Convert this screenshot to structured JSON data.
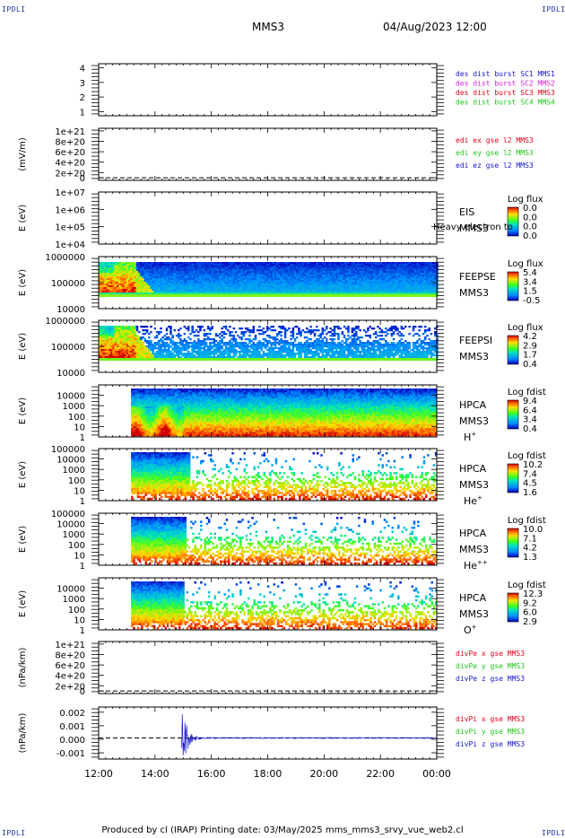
{
  "header": {
    "corner_tl": "IPDLI",
    "corner_tr": "IPDLI",
    "corner_bl": "IPDLI",
    "corner_br": "IPDLI",
    "spacecraft": "MMS3",
    "datetime": "04/Aug/2023 12:00"
  },
  "footer": {
    "text": "Produced by cl (IRAP)    Printing date: 03/May/2025    mms_mms3_srvy_vue_web2.cl"
  },
  "colors": {
    "red": "#e0001a",
    "green": "#22c41e",
    "blue": "#1515c8",
    "magenta": "#d41fd4"
  },
  "chart_data": {
    "type": "heatmap",
    "x_axis": {
      "ticks": [
        "12:00",
        "14:00",
        "16:00",
        "18:00",
        "20:00",
        "22:00",
        "00:00"
      ],
      "range_hours": [
        12,
        24
      ]
    },
    "panels": [
      {
        "id": "burst",
        "type": "line",
        "ylabel": "",
        "yticks": [
          "4",
          "3",
          "2",
          "1"
        ],
        "legend": [
          {
            "text": "des dist burst SC1 MMS1",
            "color": "blue"
          },
          {
            "text": "des dist burst SC2 MMS2",
            "color": "magenta"
          },
          {
            "text": "des dist burst SC3 MMS3",
            "color": "red"
          },
          {
            "text": "des dist burst SC4 MMS4",
            "color": "green"
          }
        ]
      },
      {
        "id": "edi",
        "type": "line",
        "ylabel": "(mV/m)",
        "yticks": [
          "1e+21",
          "8e+20",
          "6e+20",
          "4e+20",
          "2e+20",
          "0"
        ],
        "legend": [
          {
            "text": "edi ex gse l2 MMS3",
            "color": "red"
          },
          {
            "text": "edi ey gse l2 MMS3",
            "color": "green"
          },
          {
            "text": "edi ez gse l2 MMS3",
            "color": "blue"
          }
        ]
      },
      {
        "id": "eis",
        "type": "heatmap",
        "ylabel": "E (eV)",
        "yticks": [
          "1e+07",
          "1e+06",
          "1e+05",
          "1e+04"
        ],
        "labels": [
          "EIS",
          "MMS3"
        ],
        "overlay_text": "Heavy electron to",
        "colorbar_title": "Log flux",
        "colorbar_ticks": [
          "0.0",
          "0.0",
          "0.0",
          "0.0"
        ]
      },
      {
        "id": "feepse",
        "type": "heatmap",
        "ylabel": "E (eV)",
        "yticks": [
          "1000000",
          "100000",
          "10000"
        ],
        "labels": [
          "FEEPSE",
          "MMS3"
        ],
        "colorbar_title": "Log flux",
        "colorbar_ticks": [
          "5.4",
          "3.4",
          "1.5",
          "-0.5"
        ]
      },
      {
        "id": "feepsi",
        "type": "heatmap",
        "ylabel": "E (eV)",
        "yticks": [
          "1000000",
          "100000",
          "10000"
        ],
        "labels": [
          "FEEPSI",
          "MMS3"
        ],
        "colorbar_title": "Log flux",
        "colorbar_ticks": [
          "4.2",
          "2.9",
          "1.7",
          "0.4"
        ]
      },
      {
        "id": "hpca_h",
        "type": "heatmap",
        "ylabel": "E (eV)",
        "yticks": [
          "10000",
          "1000",
          "100",
          "10",
          "1"
        ],
        "labels": [
          "HPCA",
          "MMS3"
        ],
        "species": "H",
        "species_sup": "+",
        "colorbar_title": "Log fdist",
        "colorbar_ticks": [
          "9.4",
          "6.4",
          "3.4",
          "0.4"
        ]
      },
      {
        "id": "hpca_he",
        "type": "heatmap",
        "ylabel": "E (eV)",
        "yticks": [
          "100000",
          "10000",
          "1000",
          "100",
          "10",
          "1"
        ],
        "labels": [
          "HPCA",
          "MMS3"
        ],
        "species": "He",
        "species_sup": "+",
        "colorbar_title": "Log fdist",
        "colorbar_ticks": [
          "10.2",
          "7.4",
          "4.5",
          "1.6"
        ]
      },
      {
        "id": "hpca_he2",
        "type": "heatmap",
        "ylabel": "E (eV)",
        "yticks": [
          "100000",
          "10000",
          "1000",
          "100",
          "10",
          "1"
        ],
        "labels": [
          "HPCA",
          "MMS3"
        ],
        "species": "He",
        "species_sup": "++",
        "colorbar_title": "Log fdist",
        "colorbar_ticks": [
          "10.0",
          "7.1",
          "4.2",
          "1.3"
        ]
      },
      {
        "id": "hpca_o",
        "type": "heatmap",
        "ylabel": "E (eV)",
        "yticks": [
          "10000",
          "1000",
          "100",
          "10",
          "1"
        ],
        "labels": [
          "HPCA",
          "MMS3"
        ],
        "species": "O",
        "species_sup": "+",
        "colorbar_title": "Log fdist",
        "colorbar_ticks": [
          "12.3",
          "9.2",
          "6.0",
          "2.9"
        ]
      },
      {
        "id": "divpe",
        "type": "line",
        "ylabel": "(nPa/km)",
        "yticks": [
          "1e+21",
          "8e+20",
          "6e+20",
          "4e+20",
          "2e+20",
          "0"
        ],
        "legend": [
          {
            "text": "divPe x gse MMS3",
            "color": "red"
          },
          {
            "text": "divPe y gse MMS3",
            "color": "green"
          },
          {
            "text": "divPe z gse MMS3",
            "color": "blue"
          }
        ]
      },
      {
        "id": "divpi",
        "type": "line",
        "ylabel": "(nPa/km)",
        "yticks": [
          "0.002",
          "0.001",
          "0.000",
          "-0.001"
        ],
        "ylim": [
          -0.0015,
          0.0022
        ],
        "legend": [
          {
            "text": "divPi x gse MMS3",
            "color": "red"
          },
          {
            "text": "divPi y gse MMS3",
            "color": "green"
          },
          {
            "text": "divPi z gse MMS3",
            "color": "blue"
          }
        ],
        "series_peak_hours": 15.0,
        "series_peak_value": 0.0021
      }
    ]
  }
}
